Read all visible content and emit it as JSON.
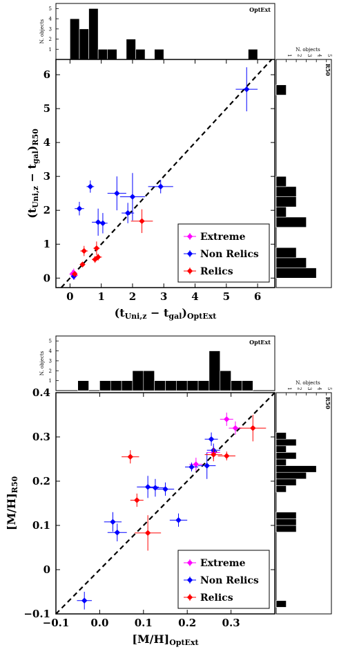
{
  "chart_data": [
    {
      "type": "scatter",
      "xlabel_main": "(t",
      "xlabel_sub": "Uni,z",
      "xlabel_mid": " − t",
      "xlabel_sub2": "gal",
      "xlabel_end": ")",
      "xlabel_sub3": "OptExt",
      "ylabel_main": "(t",
      "ylabel_sub": "Uni,z",
      "ylabel_mid": " − t",
      "ylabel_sub2": "gal",
      "ylabel_end": ")",
      "ylabel_sub3": "R50",
      "xlim": [
        -0.45,
        6.55
      ],
      "ylim": [
        -0.28,
        6.45
      ],
      "xticks": [
        "0",
        "1",
        "2",
        "3",
        "4",
        "5",
        "6"
      ],
      "yticks": [
        "0",
        "1",
        "2",
        "3",
        "4",
        "5",
        "6"
      ],
      "one_to_one_line": true,
      "legend": {
        "position": "lower-right",
        "entries": [
          "Extreme",
          "Non Relics",
          "Relics"
        ]
      },
      "series": [
        {
          "name": "Extreme",
          "color": "#ff00ff",
          "points": [
            {
              "x": 0.08,
              "y": 0.12,
              "xerr": 0.1,
              "yerr": 0.12
            },
            {
              "x": 0.12,
              "y": 0.16,
              "xerr": 0.1,
              "yerr": 0.12
            },
            {
              "x": 0.15,
              "y": 0.08,
              "xerr": 0.1,
              "yerr": 0.12
            }
          ]
        },
        {
          "name": "Non Relics",
          "color": "#0000ff",
          "points": [
            {
              "x": 5.65,
              "y": 5.57,
              "xerr": 0.35,
              "yerr": 0.65
            },
            {
              "x": 0.3,
              "y": 2.05,
              "xerr": 0.15,
              "yerr": 0.2
            },
            {
              "x": 0.65,
              "y": 2.7,
              "xerr": 0.12,
              "yerr": 0.18
            },
            {
              "x": 1.5,
              "y": 2.5,
              "xerr": 0.3,
              "yerr": 0.5
            },
            {
              "x": 2.0,
              "y": 2.4,
              "xerr": 0.4,
              "yerr": 0.7
            },
            {
              "x": 2.9,
              "y": 2.7,
              "xerr": 0.4,
              "yerr": 0.2
            },
            {
              "x": 0.9,
              "y": 1.65,
              "xerr": 0.2,
              "yerr": 0.4
            },
            {
              "x": 1.05,
              "y": 1.62,
              "xerr": 0.15,
              "yerr": 0.3
            },
            {
              "x": 1.85,
              "y": 1.92,
              "xerr": 0.2,
              "yerr": 0.3
            },
            {
              "x": 0.12,
              "y": 0.05,
              "xerr": 0.08,
              "yerr": 0.1
            }
          ]
        },
        {
          "name": "Relics",
          "color": "#ff0000",
          "points": [
            {
              "x": 0.45,
              "y": 0.8,
              "xerr": 0.12,
              "yerr": 0.15
            },
            {
              "x": 0.85,
              "y": 0.88,
              "xerr": 0.1,
              "yerr": 0.2
            },
            {
              "x": 0.4,
              "y": 0.4,
              "xerr": 0.08,
              "yerr": 0.08
            },
            {
              "x": 0.8,
              "y": 0.55,
              "xerr": 0.1,
              "yerr": 0.1
            },
            {
              "x": 0.9,
              "y": 0.62,
              "xerr": 0.12,
              "yerr": 0.1
            },
            {
              "x": 2.3,
              "y": 1.68,
              "xerr": 0.35,
              "yerr": 0.35
            },
            {
              "x": 0.15,
              "y": 0.12,
              "xerr": 0.08,
              "yerr": 0.08
            }
          ]
        }
      ],
      "top_histogram": {
        "title": "OptExt",
        "label": "N. objects",
        "ticks": [
          "1",
          "2",
          "3",
          "4",
          "5"
        ],
        "bins_left": [
          0,
          0.3,
          0.6,
          0.9,
          1.2,
          1.5,
          1.8,
          2.1,
          2.4,
          2.7,
          3.0,
          3.3,
          3.6,
          3.9,
          4.2,
          4.5,
          4.8,
          5.1,
          5.4,
          5.7
        ],
        "bin_width": 0.3,
        "counts": [
          4,
          3,
          5,
          1,
          1,
          0,
          2,
          1,
          0,
          1,
          0,
          0,
          0,
          0,
          0,
          0,
          0,
          0,
          0,
          1
        ]
      },
      "right_histogram": {
        "title": "R50",
        "label": "N. objects",
        "ticks": [
          "1",
          "2",
          "3",
          "4",
          "5"
        ],
        "bins_bottom": [
          0,
          0.3,
          0.6,
          1.5,
          1.8,
          2.1,
          2.4,
          2.7,
          5.4
        ],
        "bin_width": 0.3,
        "counts": [
          4,
          3,
          2,
          3,
          1,
          2,
          2,
          1,
          1
        ]
      }
    },
    {
      "type": "scatter",
      "xlabel_main": "[M/H]",
      "xlabel_sub": "OptExt",
      "ylabel_main": "[M/H]",
      "ylabel_sub": "R50",
      "xlim": [
        -0.1,
        0.4
      ],
      "ylim": [
        -0.1,
        0.4
      ],
      "xticks": [
        "−0.1",
        "0.0",
        "0.1",
        "0.2",
        "0.3"
      ],
      "yticks": [
        "−0.1",
        "0",
        "0.1",
        "0.2",
        "0.3",
        "0.4"
      ],
      "one_to_one_line": true,
      "legend": {
        "position": "lower-right",
        "entries": [
          "Extreme",
          "Non Relics",
          "Relics"
        ]
      },
      "series": [
        {
          "name": "Extreme",
          "color": "#ff00ff",
          "points": [
            {
              "x": 0.29,
              "y": 0.34,
              "xerr": 0.015,
              "yerr": 0.015
            },
            {
              "x": 0.31,
              "y": 0.32,
              "xerr": 0.015,
              "yerr": 0.015
            },
            {
              "x": 0.22,
              "y": 0.238,
              "xerr": 0.015,
              "yerr": 0.015
            },
            {
              "x": 0.26,
              "y": 0.265,
              "xerr": 0.015,
              "yerr": 0.015
            }
          ]
        },
        {
          "name": "Non Relics",
          "color": "#0000ff",
          "points": [
            {
              "x": -0.035,
              "y": -0.07,
              "xerr": 0.017,
              "yerr": 0.02
            },
            {
              "x": 0.03,
              "y": 0.108,
              "xerr": 0.02,
              "yerr": 0.022
            },
            {
              "x": 0.04,
              "y": 0.084,
              "xerr": 0.022,
              "yerr": 0.02
            },
            {
              "x": 0.11,
              "y": 0.187,
              "xerr": 0.025,
              "yerr": 0.025
            },
            {
              "x": 0.127,
              "y": 0.185,
              "xerr": 0.02,
              "yerr": 0.02
            },
            {
              "x": 0.15,
              "y": 0.182,
              "xerr": 0.02,
              "yerr": 0.015
            },
            {
              "x": 0.18,
              "y": 0.112,
              "xerr": 0.02,
              "yerr": 0.015
            },
            {
              "x": 0.21,
              "y": 0.232,
              "xerr": 0.015,
              "yerr": 0.01
            },
            {
              "x": 0.245,
              "y": 0.235,
              "xerr": 0.02,
              "yerr": 0.03
            },
            {
              "x": 0.255,
              "y": 0.295,
              "xerr": 0.015,
              "yerr": 0.015
            },
            {
              "x": 0.26,
              "y": 0.27,
              "xerr": 0.015,
              "yerr": 0.015
            }
          ]
        },
        {
          "name": "Relics",
          "color": "#ff0000",
          "points": [
            {
              "x": 0.07,
              "y": 0.255,
              "xerr": 0.02,
              "yerr": 0.015
            },
            {
              "x": 0.085,
              "y": 0.157,
              "xerr": 0.015,
              "yerr": 0.015
            },
            {
              "x": 0.11,
              "y": 0.083,
              "xerr": 0.03,
              "yerr": 0.04
            },
            {
              "x": 0.26,
              "y": 0.26,
              "xerr": 0.02,
              "yerr": 0.015
            },
            {
              "x": 0.29,
              "y": 0.257,
              "xerr": 0.02,
              "yerr": 0.01
            },
            {
              "x": 0.35,
              "y": 0.32,
              "xerr": 0.03,
              "yerr": 0.03
            }
          ]
        }
      ],
      "top_histogram": {
        "title": "OptExt",
        "label": "N. objects",
        "ticks": [
          "1",
          "2",
          "3",
          "4",
          "5"
        ],
        "bins_left": [
          -0.05,
          -0.025,
          0.0,
          0.025,
          0.05,
          0.075,
          0.1,
          0.125,
          0.15,
          0.175,
          0.2,
          0.225,
          0.25,
          0.275,
          0.3,
          0.325
        ],
        "bin_width": 0.025,
        "counts": [
          1,
          0,
          1,
          1,
          1,
          2,
          2,
          1,
          1,
          1,
          1,
          1,
          4,
          2,
          1,
          1
        ]
      },
      "right_histogram": {
        "title": "R50",
        "label": "N. objects",
        "ticks": [
          "1",
          "2",
          "3",
          "4",
          "5"
        ],
        "bins_bottom": [
          -0.085,
          0.085,
          0.1,
          0.115,
          0.175,
          0.19,
          0.205,
          0.22,
          0.235,
          0.25,
          0.265,
          0.28,
          0.295,
          0.31,
          0.325
        ],
        "bin_width": 0.015,
        "counts": [
          1,
          2,
          2,
          2,
          1,
          2,
          3,
          4,
          1,
          2,
          1,
          2,
          1,
          0,
          0
        ]
      }
    }
  ]
}
